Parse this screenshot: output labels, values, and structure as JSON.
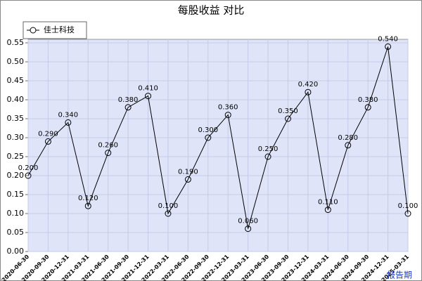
{
  "chart_data": {
    "type": "line",
    "title": "每股收益  对比",
    "x_label": "报告期",
    "categories": [
      "2020-06-30",
      "2020-09-30",
      "2020-12-31",
      "2021-03-31",
      "2021-06-30",
      "2021-09-30",
      "2021-12-31",
      "2022-03-31",
      "2022-06-30",
      "2022-09-30",
      "2022-12-31",
      "2023-03-31",
      "2023-06-30",
      "2023-09-30",
      "2023-12-31",
      "2024-03-31",
      "2024-06-30",
      "2024-09-30",
      "2024-12-31",
      "2025-03-31"
    ],
    "series": [
      {
        "name": "佳士科技",
        "color": "#000000",
        "values": [
          0.2,
          0.29,
          0.34,
          0.12,
          0.26,
          0.38,
          0.41,
          0.1,
          0.19,
          0.3,
          0.36,
          0.06,
          0.25,
          0.35,
          0.42,
          0.11,
          0.28,
          0.38,
          0.54,
          0.1
        ],
        "value_labels": [
          "0.200",
          "0.290",
          "0.340",
          "0.120",
          "0.260",
          "0.380",
          "0.410",
          "0.100",
          "0.190",
          "0.300",
          "0.360",
          "0.060",
          "0.250",
          "0.350",
          "0.420",
          "0.110",
          "0.280",
          "0.380",
          "0.540",
          "0.100"
        ]
      }
    ],
    "ylim": [
      0,
      0.55
    ],
    "yticks": [
      {
        "value": 0,
        "label": "0.00"
      },
      {
        "value": 0.05,
        "label": "0.05"
      },
      {
        "value": 0.1,
        "label": "0.10"
      },
      {
        "value": 0.15,
        "label": "0.15"
      },
      {
        "value": 0.2,
        "label": "0.20"
      },
      {
        "value": 0.25,
        "label": "0.25"
      },
      {
        "value": 0.3,
        "label": "0.30"
      },
      {
        "value": 0.35,
        "label": "0.35"
      },
      {
        "value": 0.4,
        "label": "0.40"
      },
      {
        "value": 0.45,
        "label": "0.45"
      },
      {
        "value": 0.5,
        "label": "0.50"
      },
      {
        "value": 0.55,
        "label": "0.55"
      }
    ],
    "grid": true,
    "legend": "top-left"
  }
}
